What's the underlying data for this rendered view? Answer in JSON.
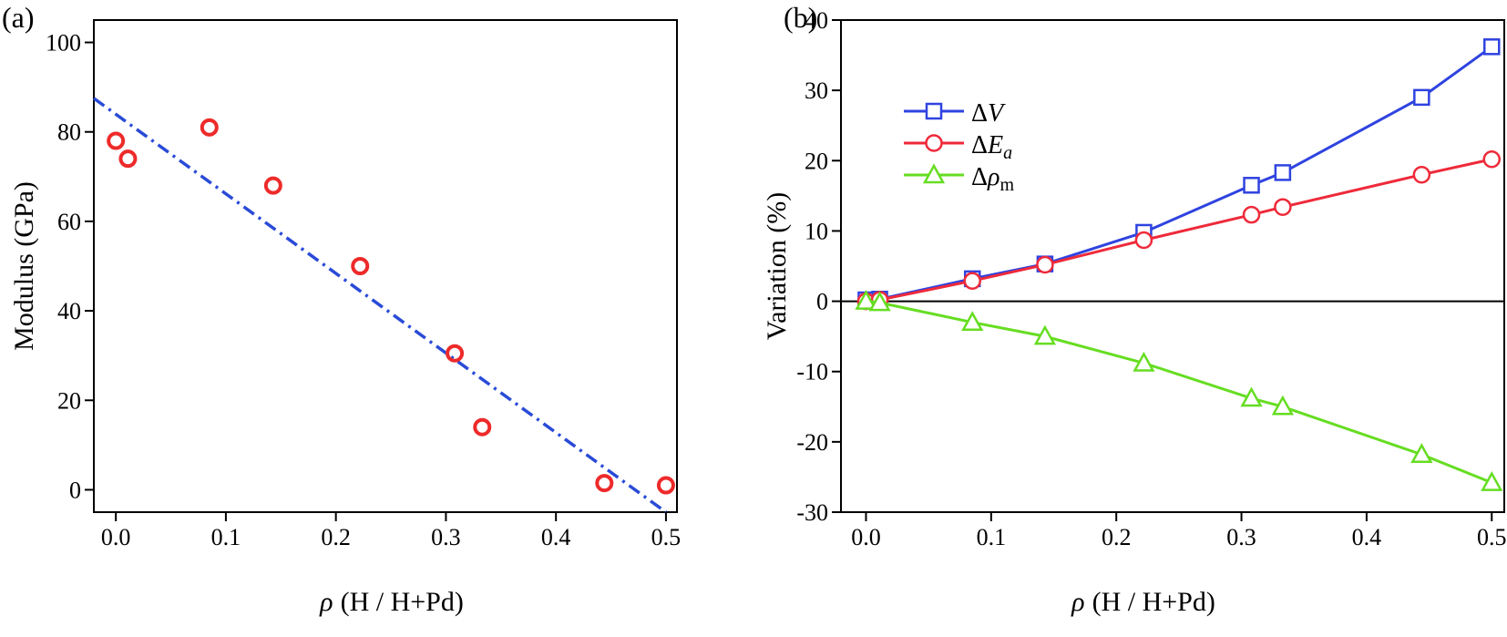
{
  "chart_data": [
    {
      "type": "scatter",
      "panel_label": "(a)",
      "xlabel_symbol": "ρ",
      "xlabel": "(H / H+Pd)",
      "ylabel": "Modulus (GPa)",
      "xlim": [
        -0.02,
        0.51
      ],
      "ylim": [
        -5,
        105
      ],
      "xticks": [
        "0.0",
        "0.1",
        "0.2",
        "0.3",
        "0.4",
        "0.5"
      ],
      "yticks": [
        "0",
        "20",
        "40",
        "60",
        "80",
        "100"
      ],
      "series": [
        {
          "marker": "circle",
          "color": "#ee2a2a",
          "x": [
            0.0,
            0.011,
            0.085,
            0.143,
            0.222,
            0.308,
            0.333,
            0.444,
            0.5
          ],
          "y": [
            78,
            74,
            81,
            68,
            50,
            30.5,
            14,
            1.5,
            1
          ]
        }
      ],
      "fit_line": {
        "style": "dash-dot",
        "color": "#2a4bd7",
        "x": [
          -0.02,
          0.5
        ],
        "y": [
          87.5,
          -5
        ]
      }
    },
    {
      "type": "line",
      "panel_label": "(b)",
      "xlabel_symbol": "ρ",
      "xlabel": "(H / H+Pd)",
      "ylabel": "Variation (%)",
      "xlim": [
        -0.02,
        0.51
      ],
      "ylim": [
        -30,
        40
      ],
      "xticks": [
        "0.0",
        "0.1",
        "0.2",
        "0.3",
        "0.4",
        "0.5"
      ],
      "yticks": [
        "-30",
        "-20",
        "-10",
        "0",
        "10",
        "20",
        "30",
        "40"
      ],
      "zero_line": true,
      "legend_position": "top-left",
      "x": [
        0.0,
        0.011,
        0.085,
        0.143,
        0.222,
        0.308,
        0.333,
        0.444,
        0.5
      ],
      "series": [
        {
          "name": "ΔV",
          "marker": "square",
          "color": "#2f43e0",
          "values": [
            0.2,
            0.3,
            3.2,
            5.3,
            9.8,
            16.5,
            18.3,
            29,
            36.2
          ]
        },
        {
          "name": "ΔEa",
          "marker": "circle",
          "color": "#ee2a3a",
          "values": [
            0,
            0.2,
            2.9,
            5.2,
            8.7,
            12.3,
            13.4,
            18,
            20.2
          ]
        },
        {
          "name": "Δρm",
          "marker": "triangle",
          "color": "#66dd22",
          "values": [
            0,
            -0.2,
            -3,
            -5,
            -8.8,
            -13.8,
            -15,
            -21.8,
            -25.8
          ]
        }
      ]
    }
  ]
}
